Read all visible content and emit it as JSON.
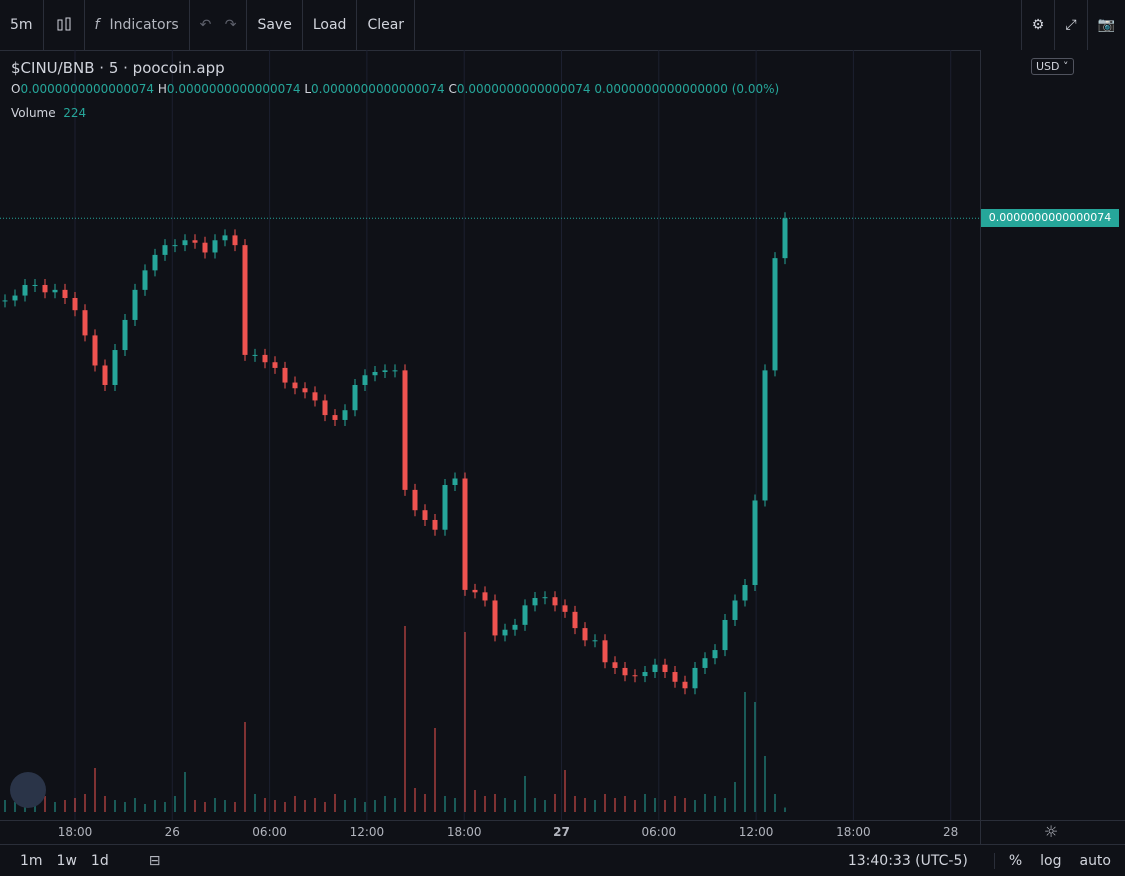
{
  "toolbar": {
    "interval": "5m",
    "indicators": "Indicators",
    "save": "Save",
    "load": "Load",
    "clear": "Clear"
  },
  "legend": {
    "symbol": "$CINU/BNB",
    "resolution": "5",
    "source": "poocoin.app",
    "ohlc": [
      {
        "key": "O",
        "value": "0.0000000000000074"
      },
      {
        "key": "H",
        "value": "0.0000000000000074"
      },
      {
        "key": "L",
        "value": "0.0000000000000074"
      },
      {
        "key": "C",
        "value": "0.0000000000000074"
      }
    ],
    "change": "0.0000000000000000 (0.00%)",
    "volume_label": "Volume",
    "volume_value": "224"
  },
  "currency": "USD",
  "price_label": "0.0000000000000074",
  "time_labels": [
    "18:00",
    "26",
    "06:00",
    "12:00",
    "18:00",
    "27",
    "06:00",
    "12:00",
    "18:00",
    "28"
  ],
  "ranges": [
    "1m",
    "1w",
    "1d"
  ],
  "clock": "13:40:33 (UTC-5)",
  "scale_options": [
    "%",
    "log",
    "auto"
  ],
  "chart_data": {
    "type": "candlestick",
    "up_color": "#26a69a",
    "down_color": "#ef5350",
    "ylim": [
      0,
      9.47e-15
    ],
    "volume_ylim": [
      0,
      10000
    ],
    "values": [
      6.39e-15,
      6.45e-15,
      6.58e-15,
      6.58e-15,
      6.49e-15,
      6.52e-15,
      6.42e-15,
      6.27e-15,
      5.96e-15,
      5.59e-15,
      5.35e-15,
      5.78e-15,
      6.15e-15,
      6.52e-15,
      6.76e-15,
      6.95e-15,
      7.07e-15,
      7.07e-15,
      7.13e-15,
      7.1e-15,
      6.98e-15,
      7.13e-15,
      7.19e-15,
      7.07e-15,
      5.72e-15,
      5.72e-15,
      5.63e-15,
      5.56e-15,
      5.38e-15,
      5.31e-15,
      5.26e-15,
      5.16e-15,
      4.98e-15,
      4.92e-15,
      5.04e-15,
      5.35e-15,
      5.47e-15,
      5.51e-15,
      5.53e-15,
      5.53e-15,
      4.06e-15,
      3.81e-15,
      3.69e-15,
      3.57e-15,
      4.12e-15,
      4.2e-15,
      2.83e-15,
      2.8e-15,
      2.7e-15,
      2.27e-15,
      2.34e-15,
      2.4e-15,
      2.64e-15,
      2.73e-15,
      2.74e-15,
      2.64e-15,
      2.56e-15,
      2.36e-15,
      2.21e-15,
      2.21e-15,
      1.94e-15,
      1.87e-15,
      1.78e-15,
      1.77e-15,
      1.82e-15,
      1.91e-15,
      1.82e-15,
      1.7e-15,
      1.62e-15,
      1.87e-15,
      1.99e-15,
      2.09e-15,
      2.46e-15,
      2.7e-15,
      2.89e-15,
      3.93e-15,
      5.53e-15,
      6.91e-15,
      7.4e-15
    ],
    "volume": [
      600,
      500,
      700,
      400,
      800,
      500,
      600,
      700,
      900,
      2200,
      800,
      600,
      500,
      700,
      400,
      600,
      500,
      800,
      2000,
      600,
      500,
      700,
      600,
      500,
      4500,
      900,
      700,
      600,
      500,
      800,
      600,
      700,
      500,
      900,
      600,
      700,
      500,
      600,
      800,
      700,
      9300,
      1200,
      900,
      4200,
      800,
      700,
      9000,
      1100,
      800,
      900,
      700,
      600,
      1800,
      700,
      600,
      900,
      2100,
      800,
      700,
      600,
      900,
      700,
      800,
      600,
      900,
      700,
      600,
      800,
      700,
      600,
      900,
      800,
      700,
      1500,
      6000,
      5500,
      2800,
      900,
      224
    ]
  }
}
